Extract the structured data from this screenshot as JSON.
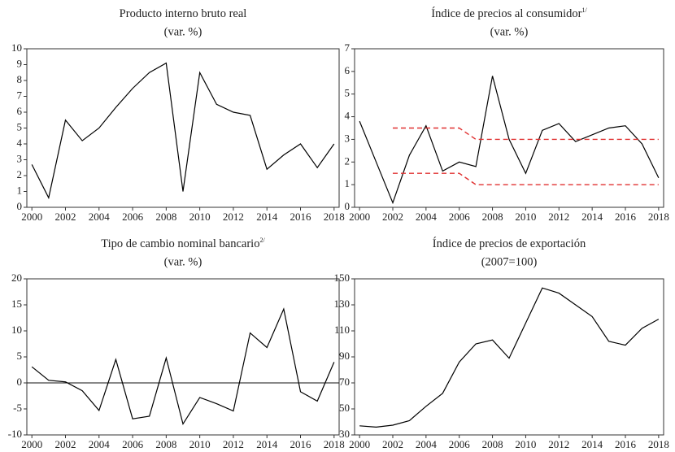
{
  "chart_data": [
    {
      "type": "line",
      "title": "Producto interno bruto real",
      "subtitle": "(var. %)",
      "x": [
        2000,
        2001,
        2002,
        2003,
        2004,
        2005,
        2006,
        2007,
        2008,
        2009,
        2010,
        2011,
        2012,
        2013,
        2014,
        2015,
        2016,
        2017,
        2018
      ],
      "series": [
        {
          "color": "#000000",
          "values": [
            2.7,
            0.6,
            5.5,
            4.2,
            5.0,
            6.3,
            7.5,
            8.5,
            9.1,
            1.0,
            8.5,
            6.5,
            6.0,
            5.8,
            2.4,
            3.3,
            4.0,
            2.5,
            4.0
          ]
        }
      ],
      "xlim": [
        1999.7,
        2018.3
      ],
      "xticks": [
        2000,
        2002,
        2004,
        2006,
        2008,
        2010,
        2012,
        2014,
        2016,
        2018
      ],
      "ylim": [
        0,
        10
      ],
      "yticks": [
        0,
        1,
        2,
        3,
        4,
        5,
        6,
        7,
        8,
        9,
        10
      ]
    },
    {
      "type": "line",
      "title": "Índice de precios al consumidor",
      "title_note": "1/",
      "subtitle": "(var. %)",
      "x": [
        2000,
        2001,
        2002,
        2003,
        2004,
        2005,
        2006,
        2007,
        2008,
        2009,
        2010,
        2011,
        2012,
        2013,
        2014,
        2015,
        2016,
        2017,
        2018
      ],
      "series": [
        {
          "color": "#000000",
          "values": [
            3.8,
            2.0,
            0.2,
            2.3,
            3.6,
            1.6,
            2.0,
            1.8,
            5.8,
            3.0,
            1.5,
            3.4,
            3.7,
            2.9,
            3.2,
            3.5,
            3.6,
            2.8,
            1.3
          ]
        },
        {
          "color": "#e03030",
          "style": "dashed",
          "values": [
            null,
            null,
            3.5,
            3.5,
            3.5,
            3.5,
            3.5,
            3,
            3,
            3,
            3,
            3,
            3,
            3,
            3,
            3,
            3,
            3,
            3
          ]
        },
        {
          "color": "#e03030",
          "style": "dashed",
          "values": [
            null,
            null,
            1.5,
            1.5,
            1.5,
            1.5,
            1.5,
            1,
            1,
            1,
            1,
            1,
            1,
            1,
            1,
            1,
            1,
            1,
            1
          ]
        }
      ],
      "xlim": [
        1999.7,
        2018.3
      ],
      "xticks": [
        2000,
        2002,
        2004,
        2006,
        2008,
        2010,
        2012,
        2014,
        2016,
        2018
      ],
      "ylim": [
        0,
        7
      ],
      "yticks": [
        0,
        1,
        2,
        3,
        4,
        5,
        6,
        7
      ]
    },
    {
      "type": "line",
      "title": "Tipo de cambio nominal bancario",
      "title_note": "2/",
      "subtitle": "(var. %)",
      "x": [
        2000,
        2001,
        2002,
        2003,
        2004,
        2005,
        2006,
        2007,
        2008,
        2009,
        2010,
        2011,
        2012,
        2013,
        2014,
        2015,
        2016,
        2017,
        2018
      ],
      "series": [
        {
          "color": "#000000",
          "values": [
            3.1,
            0.5,
            0.2,
            -1.5,
            -5.3,
            4.5,
            -6.9,
            -6.4,
            4.8,
            -7.9,
            -2.8,
            -4.0,
            -5.4,
            9.6,
            6.8,
            14.2,
            -1.7,
            -3.5,
            4.0
          ]
        }
      ],
      "xlim": [
        1999.7,
        2018.3
      ],
      "xticks": [
        2000,
        2002,
        2004,
        2006,
        2008,
        2010,
        2012,
        2014,
        2016,
        2018
      ],
      "ylim": [
        -10,
        20
      ],
      "yticks": [
        -10,
        -5,
        0,
        5,
        10,
        15,
        20
      ],
      "zero_line": true
    },
    {
      "type": "line",
      "title": "Índice de precios de exportación",
      "subtitle": "(2007=100)",
      "x": [
        2000,
        2001,
        2002,
        2003,
        2004,
        2005,
        2006,
        2007,
        2008,
        2009,
        2010,
        2011,
        2012,
        2013,
        2014,
        2015,
        2016,
        2017,
        2018
      ],
      "series": [
        {
          "color": "#000000",
          "values": [
            37,
            36,
            37.5,
            41,
            52,
            62,
            86,
            100,
            103,
            89,
            116,
            143,
            139,
            130,
            121,
            102,
            99,
            112,
            119
          ]
        }
      ],
      "xlim": [
        1999.7,
        2018.3
      ],
      "xticks": [
        2000,
        2002,
        2004,
        2006,
        2008,
        2010,
        2012,
        2014,
        2016,
        2018
      ],
      "ylim": [
        30,
        150
      ],
      "yticks": [
        30,
        50,
        70,
        90,
        110,
        130,
        150
      ]
    }
  ]
}
